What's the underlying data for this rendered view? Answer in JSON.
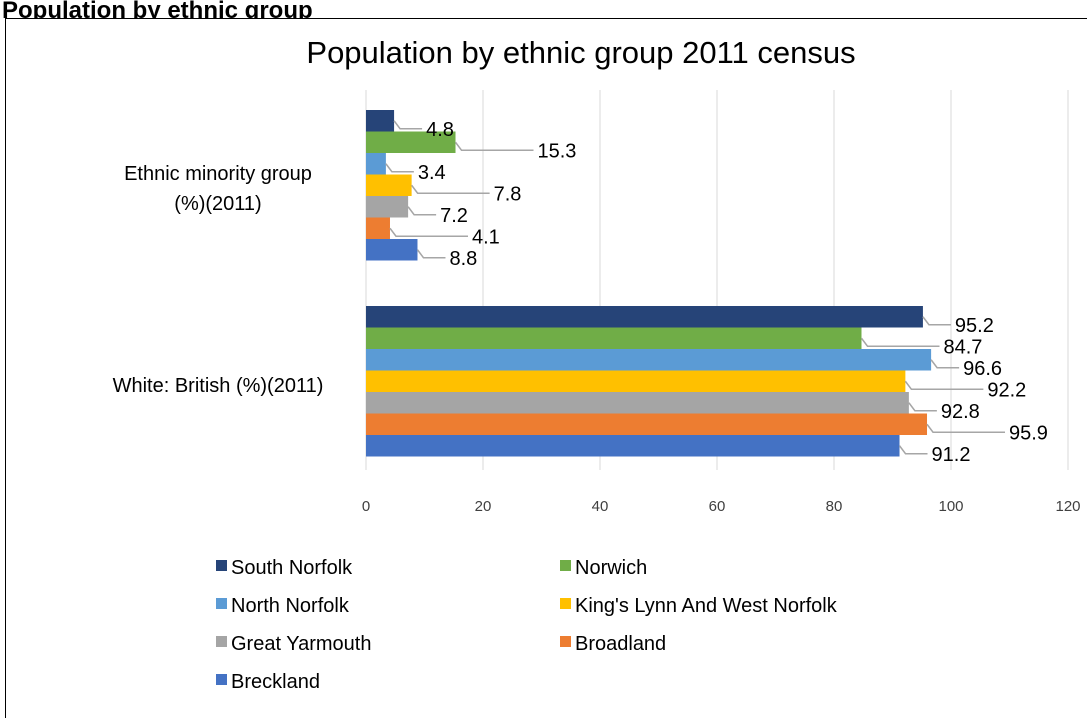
{
  "page": {
    "heading": "Population by ethnic group"
  },
  "chart_data": {
    "type": "bar",
    "orientation": "horizontal",
    "title": "Population by ethnic group 2011 census",
    "xlabel": "",
    "ylabel": "",
    "xlim": [
      0,
      120
    ],
    "x_ticks": [
      0,
      20,
      40,
      60,
      80,
      100,
      120
    ],
    "grid": true,
    "legend_position": "bottom",
    "categories": [
      "Ethnic minority group (%)(2011)",
      "White: British (%)(2011)"
    ],
    "category_lines": [
      [
        "Ethnic minority group",
        "(%)(2011)"
      ],
      [
        "White: British (%)(2011)"
      ]
    ],
    "series": [
      {
        "name": "South Norfolk",
        "color": "#264478",
        "values": [
          4.8,
          95.2
        ]
      },
      {
        "name": "Norwich",
        "color": "#70AD47",
        "values": [
          15.3,
          84.7
        ]
      },
      {
        "name": "North Norfolk",
        "color": "#5B9BD5",
        "values": [
          3.4,
          96.6
        ]
      },
      {
        "name": "King's Lynn And West Norfolk",
        "color": "#FFC000",
        "values": [
          7.8,
          92.2
        ]
      },
      {
        "name": "Great Yarmouth",
        "color": "#A5A5A5",
        "values": [
          7.2,
          92.8
        ]
      },
      {
        "name": "Broadland",
        "color": "#ED7D31",
        "values": [
          4.1,
          95.9
        ]
      },
      {
        "name": "Breckland",
        "color": "#4472C4",
        "values": [
          8.8,
          91.2
        ]
      }
    ]
  }
}
